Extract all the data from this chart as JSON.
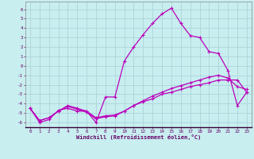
{
  "xlabel": "Windchill (Refroidissement éolien,°C)",
  "background_color": "#c8eef0",
  "grid_color": "#b0d8dc",
  "line_color": "#bb00bb",
  "xlim": [
    -0.5,
    23.5
  ],
  "ylim": [
    -6.5,
    6.8
  ],
  "xticks": [
    0,
    1,
    2,
    3,
    4,
    5,
    6,
    7,
    8,
    9,
    10,
    11,
    12,
    13,
    14,
    15,
    16,
    17,
    18,
    19,
    20,
    21,
    22,
    23
  ],
  "yticks": [
    -6,
    -5,
    -4,
    -3,
    -2,
    -1,
    0,
    1,
    2,
    3,
    4,
    5,
    6
  ],
  "line1_x": [
    0,
    1,
    2,
    3,
    4,
    5,
    6,
    7,
    8,
    9,
    10,
    11,
    12,
    13,
    14,
    15,
    16,
    17,
    18,
    19,
    20,
    21,
    22,
    23
  ],
  "line1_y": [
    -4.5,
    -6.0,
    -5.7,
    -4.7,
    -4.5,
    -4.8,
    -4.8,
    -6.0,
    -3.3,
    -3.3,
    0.5,
    2.0,
    3.3,
    4.5,
    5.5,
    6.1,
    4.5,
    3.2,
    3.0,
    1.5,
    1.3,
    -0.5,
    -4.2,
    -2.8
  ],
  "line2_x": [
    0,
    1,
    2,
    3,
    4,
    5,
    6,
    7,
    8,
    9,
    10,
    11,
    12,
    13,
    14,
    15,
    16,
    17,
    18,
    19,
    20,
    21,
    22,
    23
  ],
  "line2_y": [
    -4.5,
    -5.8,
    -5.5,
    -4.8,
    -4.2,
    -4.5,
    -4.8,
    -5.5,
    -5.3,
    -5.2,
    -4.8,
    -4.2,
    -3.8,
    -3.5,
    -3.0,
    -2.8,
    -2.5,
    -2.2,
    -2.0,
    -1.8,
    -1.5,
    -1.5,
    -1.5,
    -2.8
  ],
  "line3_x": [
    0,
    1,
    2,
    3,
    4,
    5,
    6,
    7,
    8,
    9,
    10,
    11,
    12,
    13,
    14,
    15,
    16,
    17,
    18,
    19,
    20,
    21,
    22,
    23
  ],
  "line3_y": [
    -4.5,
    -5.8,
    -5.5,
    -4.8,
    -4.3,
    -4.6,
    -4.9,
    -5.6,
    -5.4,
    -5.3,
    -4.8,
    -4.2,
    -3.7,
    -3.2,
    -2.8,
    -2.4,
    -2.1,
    -1.8,
    -1.5,
    -1.2,
    -1.0,
    -1.3,
    -2.2,
    -2.5
  ]
}
